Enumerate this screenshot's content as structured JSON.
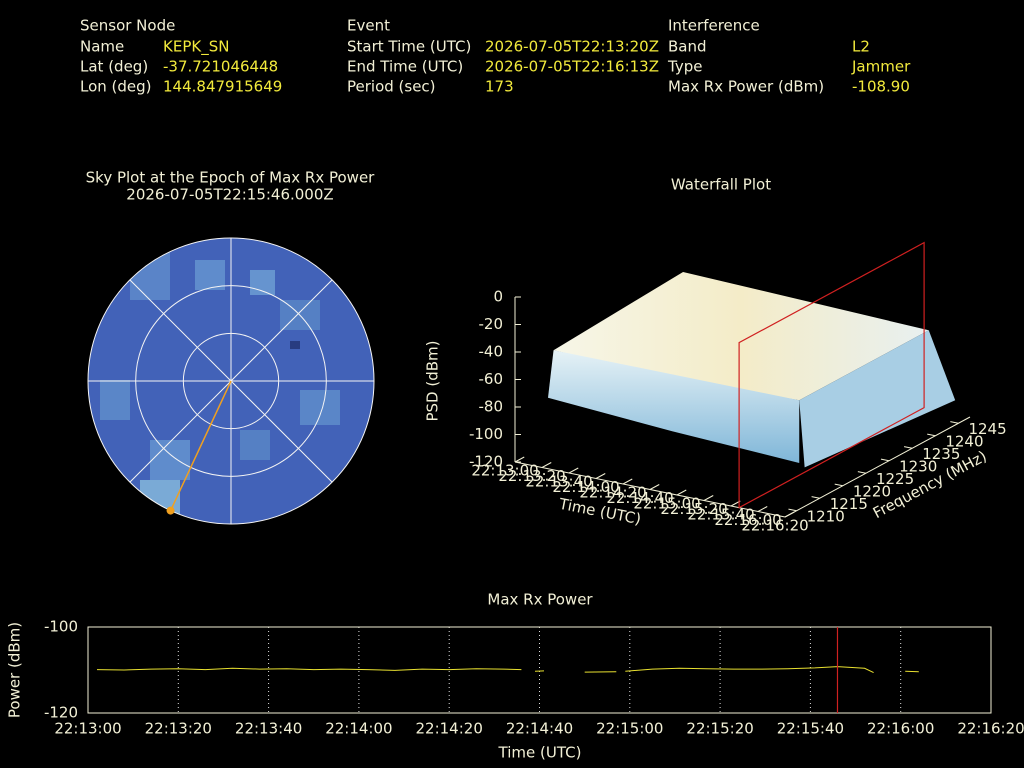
{
  "info": {
    "groups": [
      {
        "heading": "Sensor Node",
        "rows": [
          [
            "Name",
            "KEPK_SN"
          ],
          [
            "Lat (deg)",
            "-37.721046448"
          ],
          [
            "Lon (deg)",
            "144.847915649"
          ]
        ]
      },
      {
        "heading": "Event",
        "rows": [
          [
            "Start Time (UTC)",
            "2026-07-05T22:13:20Z"
          ],
          [
            "End Time (UTC)",
            "2026-07-05T22:16:13Z"
          ],
          [
            "Period (sec)",
            "173"
          ]
        ]
      },
      {
        "heading": "Interference",
        "rows": [
          [
            "Band",
            "L2"
          ],
          [
            "Type",
            "Jammer"
          ],
          [
            "Max Rx Power (dBm)",
            "-108.90"
          ]
        ]
      }
    ]
  },
  "chart_data": [
    {
      "type": "polar",
      "title": "Sky Plot at the Epoch of Max Rx Power",
      "subtitle": "2026-07-05T22:15:46.000Z",
      "azimuth": [
        205
      ],
      "elevation": [
        0
      ],
      "color": "#f0a020",
      "rlim": [
        90,
        0
      ],
      "rticks": [
        60,
        30,
        0
      ],
      "azticks": [
        0,
        45,
        90,
        135,
        180,
        225,
        270,
        315
      ]
    },
    {
      "type": "surface3d",
      "title": "Waterfall Plot",
      "xlabel": "Time (UTC)",
      "ylabel": "Frequency (MHz)",
      "zlabel": "PSD (dBm)",
      "xlim": [
        "22:13:00",
        "22:16:20"
      ],
      "xticks": [
        "22:13:00",
        "22:13:20",
        "22:13:40",
        "22:14:00",
        "22:14:20",
        "22:14:40",
        "22:15:00",
        "22:15:20",
        "22:15:40",
        "22:16:00",
        "22:16:20"
      ],
      "ylim": [
        1207.5,
        1247.5
      ],
      "yticks": [
        1210,
        1215,
        1220,
        1225,
        1230,
        1235,
        1240,
        1245
      ],
      "zlim": [
        -120,
        0
      ],
      "zticks": [
        0,
        -20,
        -40,
        -60,
        -80,
        -100,
        -120
      ],
      "marker_x": "22:15:46",
      "marker_color": "#d02020"
    },
    {
      "type": "line",
      "title": "Max Rx Power",
      "xlabel": "Time (UTC)",
      "ylabel": "Power (dBm)",
      "x": [
        "22:13:02",
        "22:13:08",
        "22:13:14",
        "22:13:20",
        "22:13:26",
        "22:13:32",
        "22:13:38",
        "22:13:44",
        "22:13:50",
        "22:13:56",
        "22:14:02",
        "22:14:08",
        "22:14:14",
        "22:14:20",
        "22:14:26",
        "22:14:32",
        "22:14:36",
        "22:14:38",
        "22:14:39",
        "22:14:41",
        "22:14:44",
        "22:14:50",
        "22:14:57",
        "22:14:58",
        "22:14:59",
        "22:15:05",
        "22:15:11",
        "22:15:17",
        "22:15:23",
        "22:15:29",
        "22:15:35",
        "22:15:41",
        "22:15:46",
        "22:15:52",
        "22:15:54",
        "22:15:58",
        "22:16:01",
        "22:16:04"
      ],
      "series": [
        {
          "name": "Max Rx Power",
          "color": "#e8e030",
          "values": [
            -109.9,
            -110.0,
            -109.8,
            -109.7,
            -109.9,
            -109.6,
            -109.8,
            -109.7,
            -109.9,
            -109.8,
            -109.9,
            -110.1,
            -109.8,
            -109.9,
            -109.7,
            -109.8,
            -109.9,
            null,
            -110.3,
            -110.2,
            null,
            -110.5,
            -110.4,
            null,
            -110.3,
            -109.8,
            -109.6,
            -109.7,
            -109.8,
            -109.8,
            -109.7,
            -109.5,
            -109.2,
            -109.6,
            -110.6,
            null,
            -110.3,
            -110.4
          ]
        }
      ],
      "xlim": [
        "22:13:00",
        "22:16:20"
      ],
      "xticks": [
        "22:13:00",
        "22:13:20",
        "22:13:40",
        "22:14:00",
        "22:14:20",
        "22:14:40",
        "22:15:00",
        "22:15:20",
        "22:15:40",
        "22:16:00",
        "22:16:20"
      ],
      "ylim": [
        -120,
        -100
      ],
      "yticks": [
        -100,
        -120
      ],
      "grid": true,
      "marker_x": "22:15:46",
      "marker_color": "#d02020"
    }
  ]
}
